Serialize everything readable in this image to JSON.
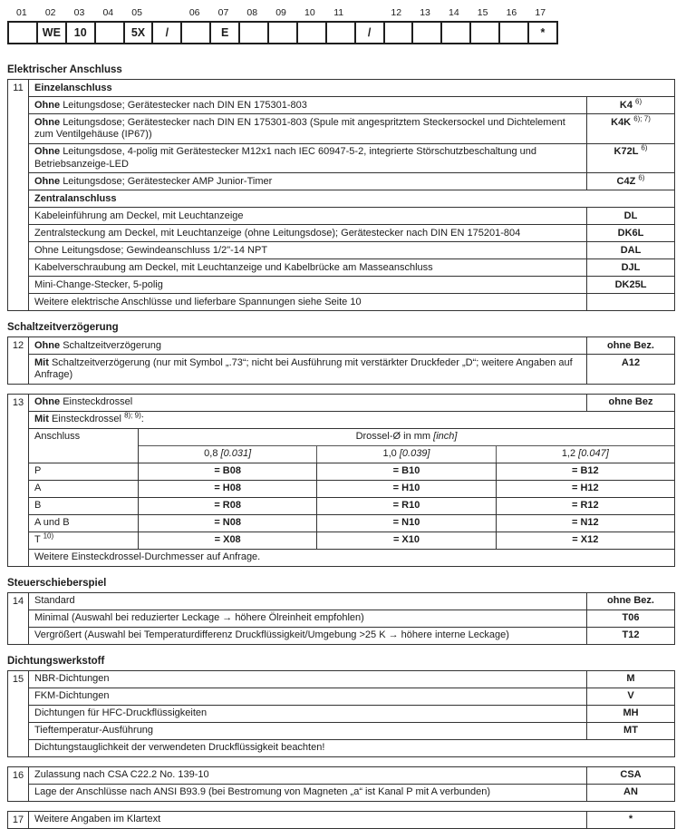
{
  "colors": {
    "background": "#ffffff",
    "text": "#1c1c1c",
    "border": "#333333"
  },
  "order_grid": {
    "cells": [
      {
        "label": "01",
        "value": ""
      },
      {
        "label": "02",
        "value": "WE"
      },
      {
        "label": "03",
        "value": "10"
      },
      {
        "label": "04",
        "value": ""
      },
      {
        "label": "05",
        "value": "5X"
      },
      {
        "label": "",
        "value": "/"
      },
      {
        "label": "06",
        "value": ""
      },
      {
        "label": "07",
        "value": "E"
      },
      {
        "label": "08",
        "value": ""
      },
      {
        "label": "09",
        "value": ""
      },
      {
        "label": "10",
        "value": ""
      },
      {
        "label": "11",
        "value": ""
      },
      {
        "label": "",
        "value": "/"
      },
      {
        "label": "12",
        "value": ""
      },
      {
        "label": "13",
        "value": ""
      },
      {
        "label": "14",
        "value": ""
      },
      {
        "label": "15",
        "value": ""
      },
      {
        "label": "16",
        "value": ""
      },
      {
        "label": "17",
        "value": "*"
      }
    ]
  },
  "drossel": {
    "corner": "Anschluss",
    "span": {
      "main": "Drossel-Ø in mm",
      "bracket": "[inch]"
    },
    "subs": [
      {
        "main": "0,8",
        "bracket": "[0.031]"
      },
      {
        "main": "1,0",
        "bracket": "[0.039]"
      },
      {
        "main": "1,2",
        "bracket": "[0.047]"
      }
    ],
    "rows": [
      {
        "label": "P",
        "sup": "",
        "values": [
          "= B08",
          "= B10",
          "= B12"
        ]
      },
      {
        "label": "A",
        "sup": "",
        "values": [
          "= H08",
          "= H10",
          "= H12"
        ]
      },
      {
        "label": "B",
        "sup": "",
        "values": [
          "= R08",
          "= R10",
          "= R12"
        ]
      },
      {
        "label": "A und B",
        "sup": "",
        "values": [
          "= N08",
          "= N10",
          "= N12"
        ]
      },
      {
        "label": "T",
        "sup": "10)",
        "values": [
          "= X08",
          "= X10",
          "= X12"
        ]
      }
    ]
  },
  "sections": [
    {
      "heading": "Elektrischer Anschluss",
      "blocks": [
        {
          "num": "11",
          "rows": [
            {
              "kind": "sub",
              "text": "Einzelanschluss"
            },
            {
              "kind": "opt",
              "prefix": "Ohne",
              "text": "Leitungsdose; Gerätestecker nach DIN EN 175301-803",
              "code": "K4",
              "code_sup": "6)"
            },
            {
              "kind": "opt",
              "prefix": "Ohne",
              "text": "Leitungsdose; Gerätestecker nach DIN EN 175301-803 (Spule mit angespritztem Steckersockel und Dichtele­ment zum Ventilgehäuse (IP67))",
              "code": "K4K",
              "code_sup": "6); 7)"
            },
            {
              "kind": "opt",
              "prefix": "Ohne",
              "text": "Leitungsdose, 4-polig mit Gerätestecker M12x1 nach IEC 60947-5-2, integrierte Störschutzbeschaltung und Betriebsanzeige-LED",
              "code": "K72L",
              "code_sup": "6)"
            },
            {
              "kind": "opt",
              "prefix": "Ohne",
              "text": "Leitungsdose; Gerätestecker AMP Junior-Timer",
              "code": "C4Z",
              "code_sup": "6)"
            },
            {
              "kind": "sub",
              "text": "Zentralanschluss"
            },
            {
              "kind": "opt",
              "text": "Kabeleinführung am Deckel, mit Leuchtanzeige",
              "code": "DL"
            },
            {
              "kind": "opt",
              "text": "Zentralsteckung am Deckel, mit Leuchtanzeige (ohne Leitungsdose); Gerätestecker nach DIN EN 175201-804",
              "code": "DK6L"
            },
            {
              "kind": "opt",
              "text": "Ohne Leitungsdose; Gewindeanschluss 1/2\"-14 NPT",
              "code": "DAL"
            },
            {
              "kind": "opt",
              "text": "Kabelverschraubung am Deckel, mit Leuchtanzeige und Kabelbrücke am Masseanschluss",
              "code": "DJL"
            },
            {
              "kind": "opt",
              "text": "Mini-Change-Stecker, 5-polig",
              "code": "DK25L"
            },
            {
              "kind": "opt",
              "text": "Weitere elektrische Anschlüsse und lieferbare Spannungen siehe Seite 10",
              "code": ""
            }
          ]
        }
      ]
    },
    {
      "heading": "Schaltzeitverzögerung",
      "blocks": [
        {
          "num": "12",
          "rows": [
            {
              "kind": "opt",
              "prefix": "Ohne",
              "text": "Schaltzeitverzögerung",
              "code": "ohne Bez."
            },
            {
              "kind": "opt",
              "prefix": "Mit",
              "text": "Schaltzeitverzögerung  (nur mit Symbol „.73“; nicht bei Ausführung mit verstärkter Druckfeder „D“; weitere Angaben auf Anfrage)",
              "code": "A12"
            }
          ]
        },
        {
          "num": "13",
          "rows": [
            {
              "kind": "opt",
              "prefix": "Ohne",
              "text": "Einsteckdrossel",
              "code": "ohne Bez"
            },
            {
              "kind": "full",
              "prefix": "Mit",
              "text": "Einsteckdrossel",
              "sup": "8); 9)",
              "tail": ":"
            },
            {
              "kind": "drossel"
            },
            {
              "kind": "full",
              "text": "Weitere Einsteckdrossel-Durchmesser auf Anfrage."
            }
          ]
        }
      ]
    },
    {
      "heading": "Steuerschieberspiel",
      "blocks": [
        {
          "num": "14",
          "rows": [
            {
              "kind": "opt",
              "text": "Standard",
              "code": "ohne Bez."
            },
            {
              "kind": "opt",
              "text": "Minimal (Auswahl bei reduzierter Leckage → höhere Ölreinheit empfohlen)",
              "code": "T06"
            },
            {
              "kind": "opt",
              "text": "Vergrößert (Auswahl bei Temperaturdifferenz Druckflüssigkeit/Umgebung >25 K → höhere interne Leckage)",
              "code": "T12"
            }
          ]
        }
      ]
    },
    {
      "heading": "Dichtungswerkstoff",
      "blocks": [
        {
          "num": "15",
          "rows": [
            {
              "kind": "opt",
              "text": "NBR-Dichtungen",
              "code": "M"
            },
            {
              "kind": "opt",
              "text": "FKM-Dichtungen",
              "code": "V"
            },
            {
              "kind": "opt",
              "text": "Dichtungen für HFC-Druckflüssigkeiten",
              "code": "MH"
            },
            {
              "kind": "opt",
              "text": "Tieftemperatur-Ausführung",
              "code": "MT"
            },
            {
              "kind": "full",
              "text": "Dichtungstauglichkeit der verwendeten Druckflüssigkeit beachten!"
            }
          ]
        },
        {
          "num": "16",
          "rows": [
            {
              "kind": "opt",
              "text": "Zulassung nach CSA C22.2 No. 139-10",
              "code": "CSA"
            },
            {
              "kind": "opt",
              "text": "Lage der Anschlüsse nach ANSI B93.9 (bei Bestromung von Magneten „a“ ist Kanal P mit A verbunden)",
              "code": "AN"
            }
          ]
        },
        {
          "num": "17",
          "rows": [
            {
              "kind": "opt",
              "text": "Weitere Angaben im Klartext",
              "code": "*"
            }
          ]
        }
      ]
    }
  ]
}
